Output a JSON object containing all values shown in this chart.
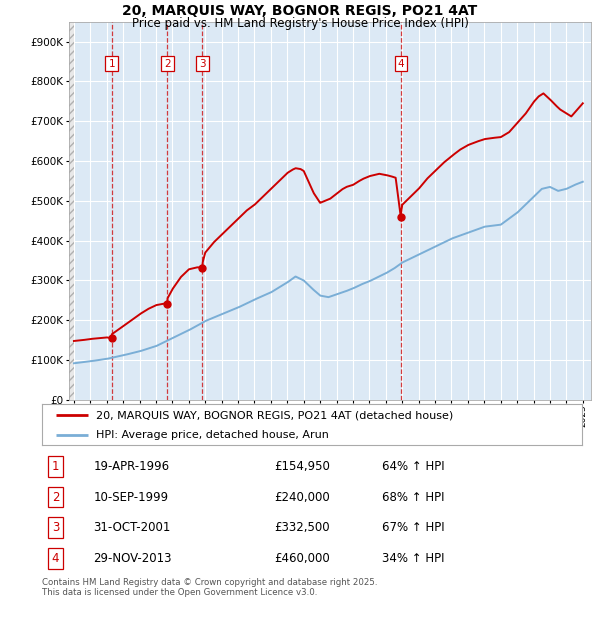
{
  "title_line1": "20, MARQUIS WAY, BOGNOR REGIS, PO21 4AT",
  "title_line2": "Price paid vs. HM Land Registry's House Price Index (HPI)",
  "background_color": "#ffffff",
  "plot_bg_color": "#dce9f5",
  "sale_color": "#cc0000",
  "hpi_color": "#7aaed6",
  "sale_dates": [
    1996.3,
    1999.69,
    2001.83,
    2013.91
  ],
  "sale_prices": [
    154950,
    240000,
    332500,
    460000
  ],
  "sale_labels": [
    "1",
    "2",
    "3",
    "4"
  ],
  "legend_sale": "20, MARQUIS WAY, BOGNOR REGIS, PO21 4AT (detached house)",
  "legend_hpi": "HPI: Average price, detached house, Arun",
  "table_data": [
    {
      "num": "1",
      "date": "19-APR-1996",
      "price": "£154,950",
      "change": "64% ↑ HPI"
    },
    {
      "num": "2",
      "date": "10-SEP-1999",
      "price": "£240,000",
      "change": "68% ↑ HPI"
    },
    {
      "num": "3",
      "date": "31-OCT-2001",
      "price": "£332,500",
      "change": "67% ↑ HPI"
    },
    {
      "num": "4",
      "date": "29-NOV-2013",
      "price": "£460,000",
      "change": "34% ↑ HPI"
    }
  ],
  "footer": "Contains HM Land Registry data © Crown copyright and database right 2025.\nThis data is licensed under the Open Government Licence v3.0.",
  "ylim": [
    0,
    950000
  ],
  "xlim_start": 1993.7,
  "xlim_end": 2025.5,
  "hpi_anchors_x": [
    1994,
    1995,
    1996,
    1997,
    1998,
    1999,
    2000,
    2001,
    2002,
    2003,
    2004,
    2005,
    2006,
    2007,
    2007.5,
    2008,
    2008.5,
    2009,
    2009.5,
    2010,
    2010.5,
    2011,
    2011.5,
    2012,
    2012.5,
    2013,
    2013.5,
    2014,
    2015,
    2016,
    2017,
    2018,
    2019,
    2020,
    2020.5,
    2021,
    2021.5,
    2022,
    2022.5,
    2023,
    2023.5,
    2024,
    2024.5,
    2025
  ],
  "hpi_anchors_y": [
    92000,
    97000,
    103000,
    112000,
    122000,
    135000,
    155000,
    175000,
    198000,
    215000,
    232000,
    252000,
    270000,
    295000,
    310000,
    300000,
    280000,
    262000,
    258000,
    265000,
    272000,
    280000,
    290000,
    298000,
    308000,
    318000,
    330000,
    345000,
    365000,
    385000,
    405000,
    420000,
    435000,
    440000,
    455000,
    470000,
    490000,
    510000,
    530000,
    535000,
    525000,
    530000,
    540000,
    548000
  ],
  "sale_anchors_x": [
    1994.0,
    1994.5,
    1995.0,
    1995.5,
    1996.0,
    1996.3,
    1996.31,
    1997,
    1997.5,
    1998,
    1998.5,
    1999.0,
    1999.5,
    1999.69,
    1999.7,
    2000,
    2000.5,
    2001.0,
    2001.5,
    2001.83,
    2001.84,
    2002,
    2002.5,
    2003,
    2003.5,
    2004,
    2004.5,
    2005,
    2005.5,
    2006,
    2006.5,
    2007,
    2007.3,
    2007.5,
    2007.8,
    2008,
    2008.3,
    2008.6,
    2009,
    2009.3,
    2009.6,
    2010,
    2010.3,
    2010.6,
    2011,
    2011.3,
    2011.6,
    2012,
    2012.3,
    2012.6,
    2013.0,
    2013.3,
    2013.6,
    2013.91,
    2013.92,
    2014,
    2014.5,
    2015,
    2015.5,
    2016,
    2016.5,
    2017,
    2017.5,
    2018,
    2018.5,
    2019,
    2019.5,
    2020,
    2020.5,
    2021,
    2021.5,
    2022,
    2022.3,
    2022.6,
    2023,
    2023.3,
    2023.6,
    2024,
    2024.3,
    2025
  ],
  "sale_anchors_y": [
    148000,
    150000,
    153000,
    155000,
    157000,
    154950,
    165000,
    185000,
    200000,
    215000,
    228000,
    238000,
    242000,
    240000,
    255000,
    278000,
    308000,
    328000,
    333000,
    332500,
    345000,
    370000,
    395000,
    415000,
    435000,
    455000,
    475000,
    490000,
    510000,
    530000,
    550000,
    570000,
    578000,
    582000,
    580000,
    575000,
    548000,
    520000,
    495000,
    500000,
    505000,
    518000,
    528000,
    535000,
    540000,
    548000,
    555000,
    562000,
    565000,
    568000,
    565000,
    562000,
    558000,
    460000,
    468000,
    490000,
    510000,
    530000,
    555000,
    575000,
    595000,
    612000,
    628000,
    640000,
    648000,
    655000,
    658000,
    660000,
    672000,
    695000,
    718000,
    748000,
    762000,
    770000,
    755000,
    742000,
    730000,
    720000,
    712000,
    745000
  ]
}
